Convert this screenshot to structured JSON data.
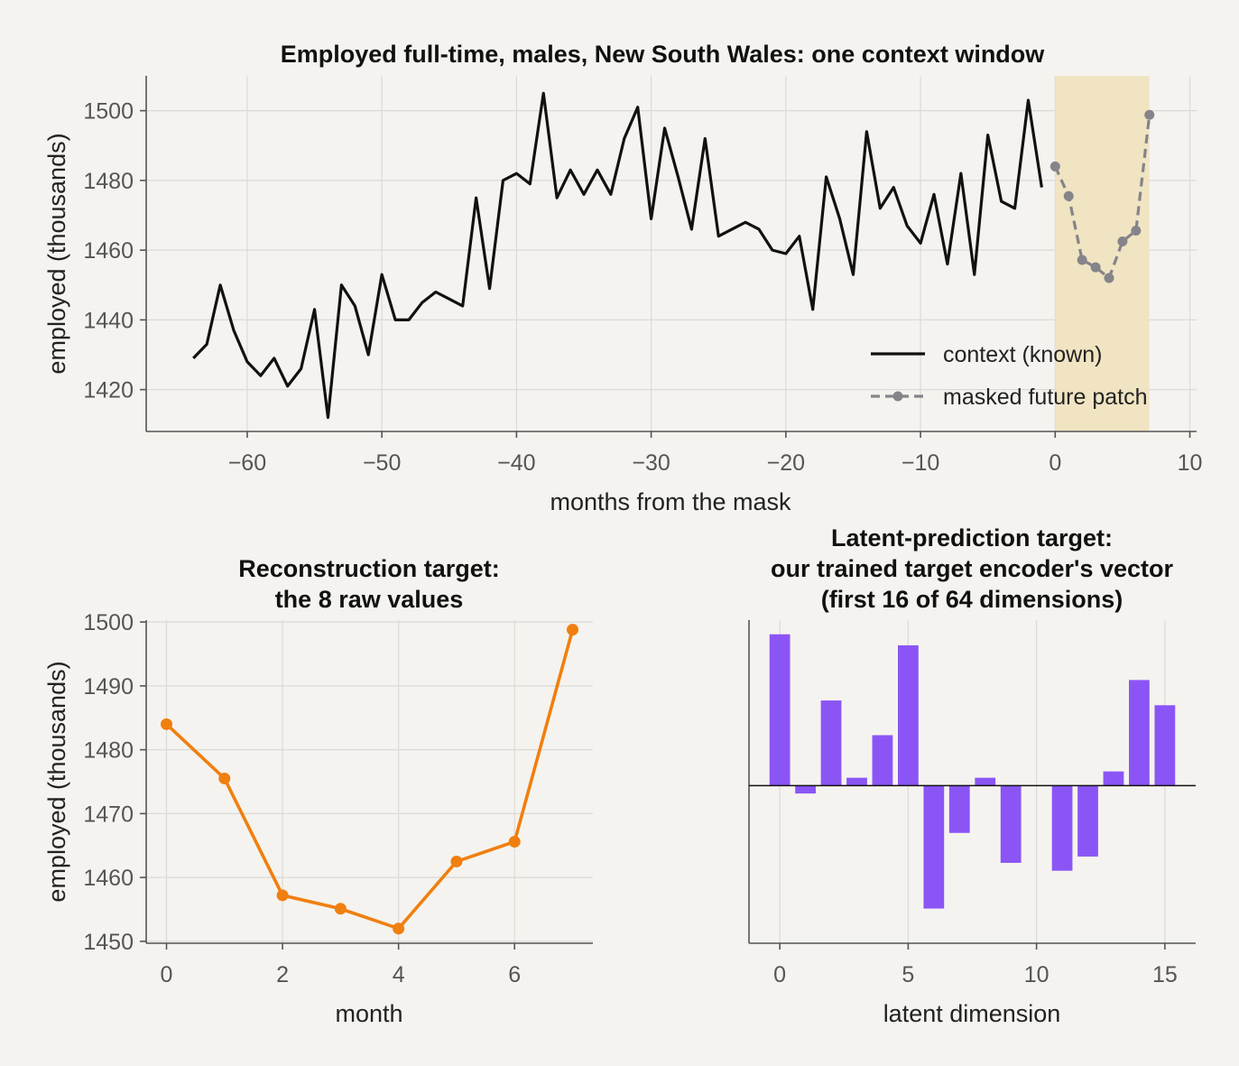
{
  "chart_data": [
    {
      "type": "line",
      "title": "Employed full-time, males, New South Wales: one context window",
      "xlabel": "months from the mask",
      "ylabel": "employed (thousands)",
      "xlim": [
        -67.5,
        10.5
      ],
      "ylim": [
        1408,
        1510
      ],
      "xticks": [
        -60,
        -50,
        -40,
        -30,
        -20,
        -10,
        0,
        10
      ],
      "xtick_labels": [
        "−60",
        "−50",
        "−40",
        "−30",
        "−20",
        "−10",
        "0",
        "10"
      ],
      "yticks": [
        1420,
        1440,
        1460,
        1480,
        1500
      ],
      "grid": true,
      "legend_position": "lower-right",
      "shaded_region": {
        "x": [
          0,
          7
        ],
        "color": "#efe2bd"
      },
      "series": [
        {
          "name": "context (known)",
          "style": "solid",
          "color": "#111111",
          "x": [
            -64,
            -63,
            -62,
            -61,
            -60,
            -59,
            -58,
            -57,
            -56,
            -55,
            -54,
            -53,
            -52,
            -51,
            -50,
            -49,
            -48,
            -47,
            -46,
            -45,
            -44,
            -43,
            -42,
            -41,
            -40,
            -39,
            -38,
            -37,
            -36,
            -35,
            -34,
            -33,
            -32,
            -31,
            -30,
            -29,
            -28,
            -27,
            -26,
            -25,
            -24,
            -23,
            -22,
            -21,
            -20,
            -19,
            -18,
            -17,
            -16,
            -15,
            -14,
            -13,
            -12,
            -11,
            -10,
            -9,
            -8,
            -7,
            -6,
            -5,
            -4,
            -3,
            -2,
            -1
          ],
          "values": [
            1429,
            1433,
            1450,
            1437,
            1428,
            1424,
            1429,
            1421,
            1426,
            1443,
            1412,
            1450,
            1444,
            1430,
            1453,
            1440,
            1440,
            1445,
            1448,
            1446,
            1444,
            1475,
            1449,
            1480,
            1482,
            1479,
            1505,
            1475,
            1483,
            1476,
            1483,
            1476,
            1492,
            1501,
            1469,
            1495,
            1481,
            1466,
            1492,
            1464,
            1466,
            1468,
            1466,
            1460,
            1459,
            1464,
            1443,
            1481,
            1469,
            1453,
            1494,
            1472,
            1478,
            1467,
            1462,
            1476,
            1456,
            1482,
            1453,
            1493,
            1474,
            1472,
            1503,
            1478
          ]
        },
        {
          "name": "masked future patch",
          "style": "dashed-marker",
          "color": "#85848a",
          "x": [
            0,
            1,
            2,
            3,
            4,
            5,
            6,
            7
          ],
          "values": [
            1484,
            1475.5,
            1457.2,
            1455.1,
            1452,
            1462.5,
            1465.6,
            1498.8
          ]
        }
      ]
    },
    {
      "type": "line",
      "title": "Reconstruction target:\nthe 8 raw values",
      "xlabel": "month",
      "ylabel": "employed (thousands)",
      "xlim": [
        -0.35,
        7.35
      ],
      "ylim": [
        1449.7,
        1500.3
      ],
      "xticks": [
        0,
        2,
        4,
        6
      ],
      "yticks": [
        1450,
        1460,
        1470,
        1480,
        1490,
        1500
      ],
      "grid": true,
      "series": [
        {
          "color": "#f07f0f",
          "x": [
            0,
            1,
            2,
            3,
            4,
            5,
            6,
            7
          ],
          "values": [
            1484,
            1475.5,
            1457.2,
            1455.1,
            1452,
            1462.5,
            1465.6,
            1498.8
          ]
        }
      ]
    },
    {
      "type": "bar",
      "title": "Latent-prediction target:\nour trained target encoder's vector\n(first 16 of 64 dimensions)",
      "xlabel": "latent dimension",
      "ylabel": "",
      "xlim": [
        -1.2,
        16.2
      ],
      "ylim": [
        -1.0,
        1.05
      ],
      "xticks": [
        0,
        5,
        10,
        15
      ],
      "grid": true,
      "zero_line": true,
      "color": "#8b55f5",
      "categories": [
        0,
        1,
        2,
        3,
        4,
        5,
        6,
        7,
        8,
        9,
        10,
        11,
        12,
        13,
        14,
        15
      ],
      "values": [
        0.96,
        -0.05,
        0.54,
        0.05,
        0.32,
        0.89,
        -0.78,
        -0.3,
        0.05,
        -0.49,
        0.0,
        -0.54,
        -0.45,
        0.09,
        0.67,
        0.51
      ]
    }
  ]
}
